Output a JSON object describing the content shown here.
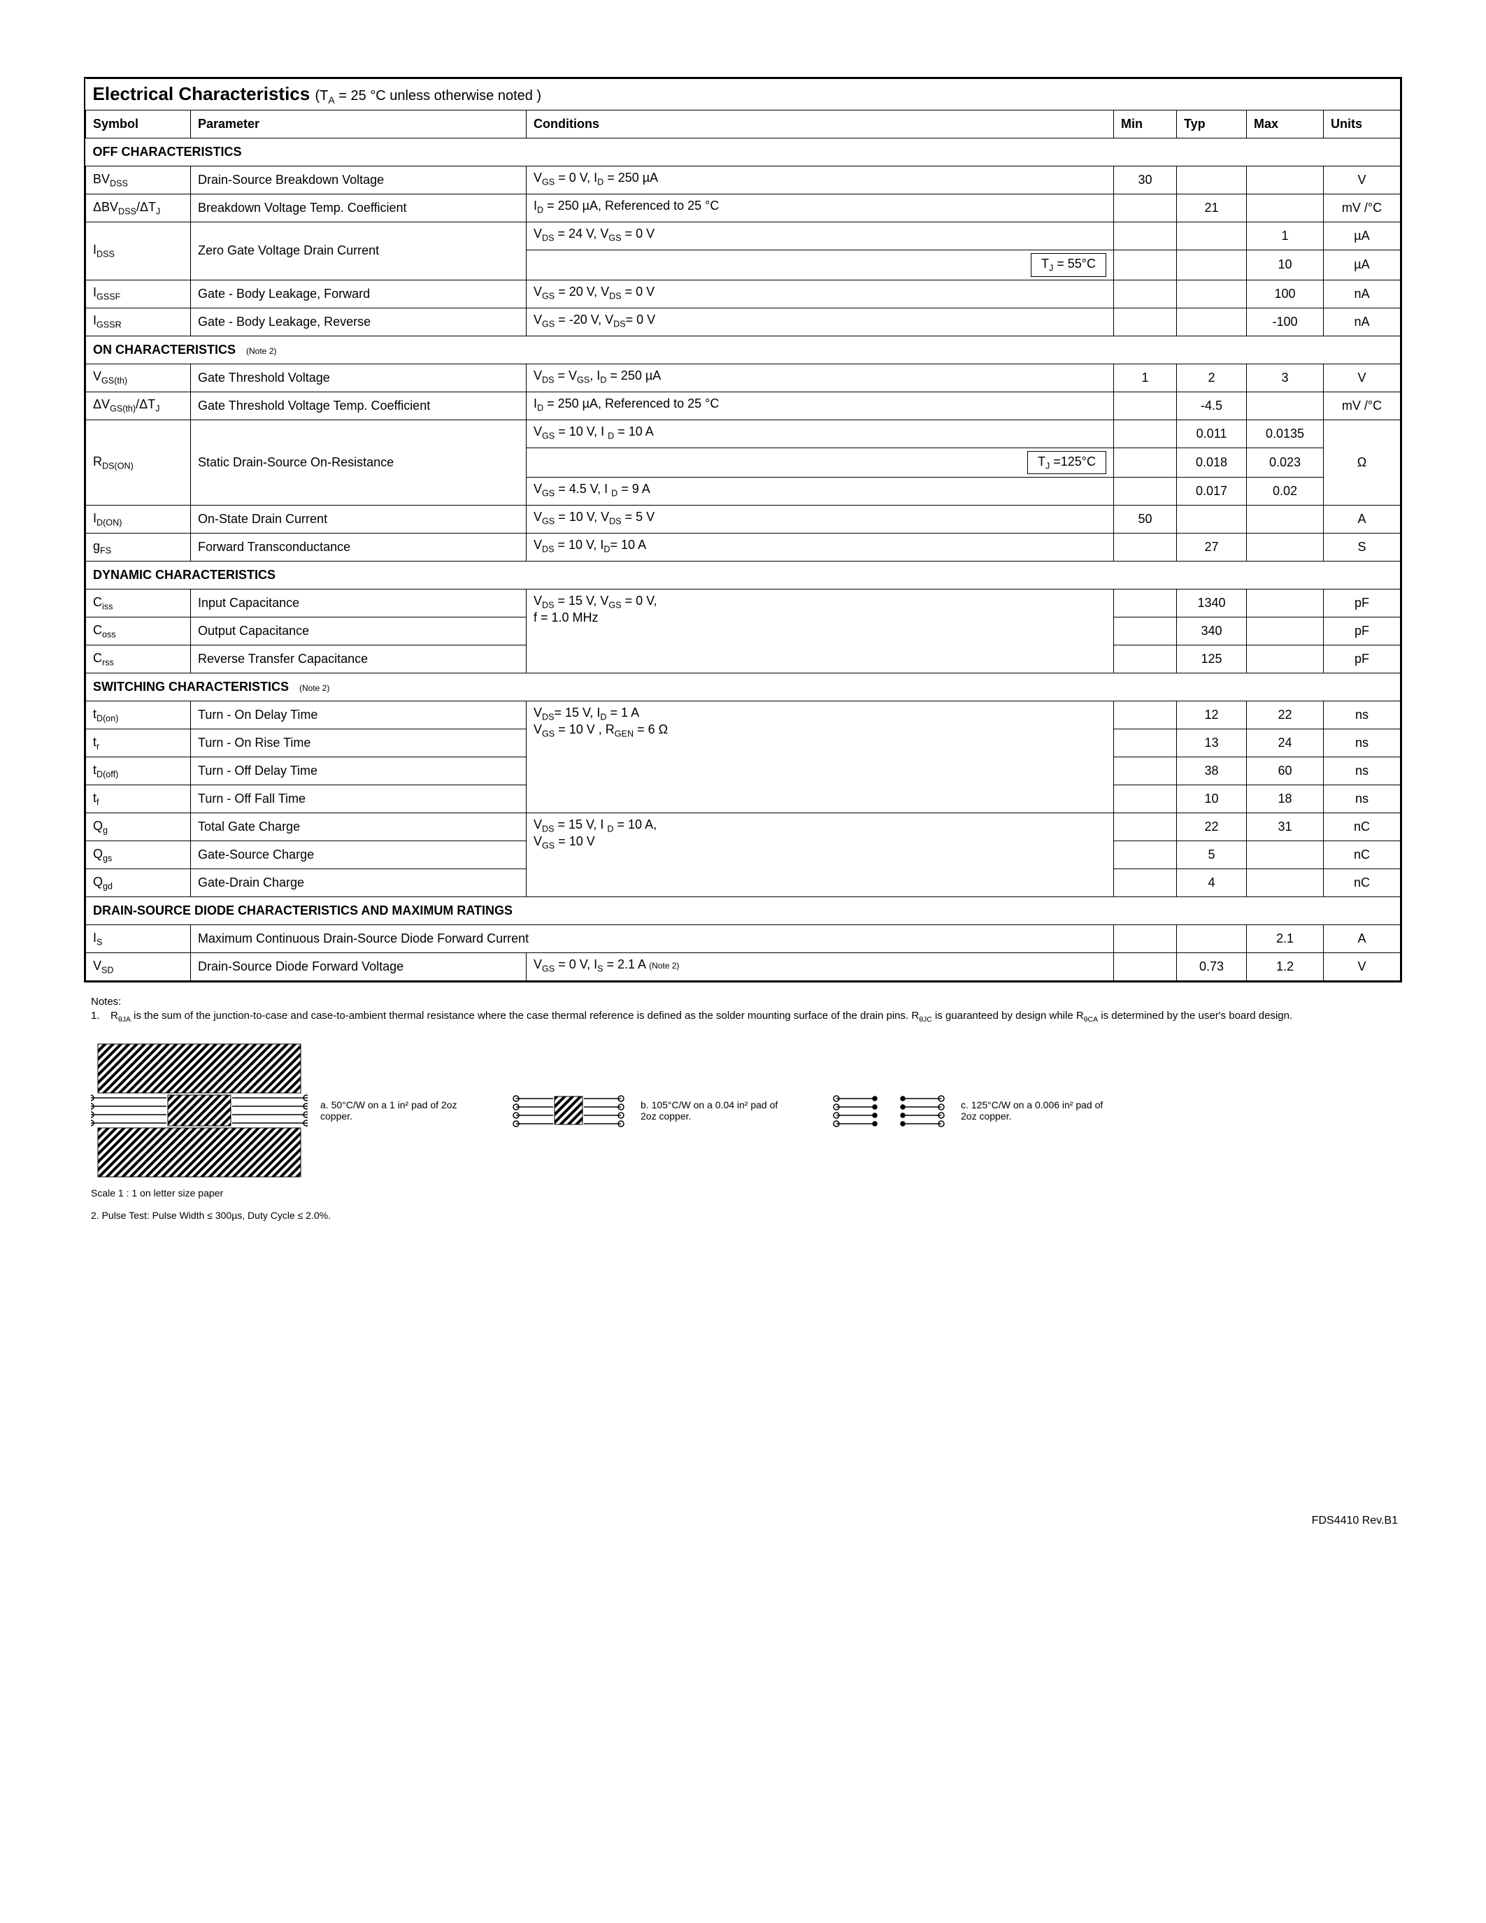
{
  "title": "Electrical Characteristics",
  "title_cond": "(T_A = 25 °C unless otherwise noted )",
  "headers": {
    "symbol": "Symbol",
    "parameter": "Parameter",
    "conditions": "Conditions",
    "min": "Min",
    "typ": "Typ",
    "max": "Max",
    "units": "Units"
  },
  "sections": [
    {
      "name": "OFF CHARACTERISTICS",
      "rows": [
        {
          "sym_html": "BV<sub>DSS</sub>",
          "param": "Drain-Source Breakdown Voltage",
          "cond_html": "V<sub>GS</sub> = 0 V,  I<sub>D</sub> = 250 µA",
          "min": "30",
          "typ": "",
          "max": "",
          "units": "V"
        },
        {
          "sym_html": "ΔBV<sub>DSS</sub>/ΔT<sub>J</sub>",
          "param": "Breakdown Voltage Temp. Coefficient",
          "cond_html": "I<sub>D</sub> = 250 µA, Referenced to  25 °C",
          "min": "",
          "typ": "21",
          "max": "",
          "units": "mV /°C"
        },
        {
          "sym_html": "I<sub>DSS</sub>",
          "sym_rowspan": 2,
          "param": "Zero Gate Voltage  Drain Current",
          "param_rowspan": 2,
          "cond_html": "V<sub>DS</sub> = 24 V,  V<sub>GS</sub> = 0 V",
          "min": "",
          "typ": "",
          "max": "1",
          "units": "µA"
        },
        {
          "cond_box": "T_J = 55°C",
          "min": "",
          "typ": "",
          "max": "10",
          "units": "µA"
        },
        {
          "sym_html": "I<sub>GSSF</sub>",
          "param": "Gate - Body Leakage, Forward",
          "cond_html": "V<sub>GS</sub> =  20 V, V<sub>DS</sub> =  0 V",
          "min": "",
          "typ": "",
          "max": "100",
          "units": "nA"
        },
        {
          "sym_html": "I<sub>GSSR</sub>",
          "param": "Gate - Body Leakage, Reverse",
          "cond_html": "V<sub>GS</sub> =  -20 V, V<sub>DS</sub>=  0 V",
          "min": "",
          "typ": "",
          "max": "-100",
          "units": "nA"
        }
      ]
    },
    {
      "name": "ON CHARACTERISTICS",
      "note": "(Note 2)",
      "rows": [
        {
          "sym_html": "V<sub>GS(th)</sub>",
          "param": "Gate Threshold Voltage",
          "cond_html": "V<sub>DS</sub> = V<sub>GS</sub>,  I<sub>D</sub> = 250 µA",
          "min": "1",
          "typ": "2",
          "max": "3",
          "units": "V"
        },
        {
          "sym_html": "ΔV<sub>GS(th)</sub>/ΔT<sub>J</sub>",
          "param": "Gate Threshold Voltage Temp. Coefficient",
          "cond_html": "I<sub>D</sub> = 250 µA, Referenced to  25 °C",
          "min": "",
          "typ": "-4.5",
          "max": "",
          "units": "mV /°C"
        },
        {
          "sym_html": "R<sub>DS(ON)</sub>",
          "sym_rowspan": 3,
          "param": "Static Drain-Source On-Resistance",
          "param_rowspan": 3,
          "cond_html": "V<sub>GS</sub> = 10 V,  I <sub>D</sub> = 10 A",
          "min": "",
          "typ": "0.011",
          "max": "0.0135",
          "units": "Ω",
          "units_rowspan": 3
        },
        {
          "cond_box": "T_J =125°C",
          "min": "",
          "typ": "0.018",
          "max": "0.023"
        },
        {
          "cond_html": "V<sub>GS</sub> = 4.5 V,  I <sub>D</sub> = 9 A",
          "min": "",
          "typ": "0.017",
          "max": "0.02"
        },
        {
          "sym_html": "I<sub>D(ON)</sub>",
          "param": "On-State Drain Current",
          "cond_html": "V<sub>GS</sub> = 10 V,  V<sub>DS</sub> = 5 V",
          "min": "50",
          "typ": "",
          "max": "",
          "units": "A"
        },
        {
          "sym_html": "g<sub>FS</sub>",
          "param": "Forward Transconductance",
          "cond_html": "V<sub>DS</sub> = 10 V,  I<sub>D</sub>= 10 A",
          "min": "",
          "typ": "27",
          "max": "",
          "units": "S"
        }
      ]
    },
    {
      "name": "DYNAMIC  CHARACTERISTICS",
      "rows": [
        {
          "sym_html": "C<sub>iss</sub>",
          "param": "Input Capacitance",
          "cond_html": "V<sub>DS</sub> = 15 V,  V<sub>GS</sub> = 0 V,<br> f  = 1.0 MHz",
          "cond_rowspan": 3,
          "min": "",
          "typ": "1340",
          "max": "",
          "units": "pF"
        },
        {
          "sym_html": "C<sub>oss</sub>",
          "param": "Output Capacitance",
          "min": "",
          "typ": "340",
          "max": "",
          "units": "pF"
        },
        {
          "sym_html": "C<sub>rss</sub>",
          "param": "Reverse Transfer Capacitance",
          "min": "",
          "typ": "125",
          "max": "",
          "units": "pF"
        }
      ]
    },
    {
      "name": "SWITCHING  CHARACTERISTICS",
      "note": "(Note 2)",
      "rows": [
        {
          "sym_html": "t<sub>D(on)</sub>",
          "param": "Turn - On Delay Time",
          "cond_html": "V<sub>DS</sub>= 15 V,  I<sub>D</sub> = 1 A <br>V<sub>GS</sub> = 10 V ,  R<sub>GEN</sub>  = 6 Ω",
          "cond_rowspan": 4,
          "min": "",
          "typ": "12",
          "max": "22",
          "units": "ns"
        },
        {
          "sym_html": "t<sub>r</sub>",
          "param": "Turn - On Rise Time",
          "min": "",
          "typ": "13",
          "max": "24",
          "units": "ns"
        },
        {
          "sym_html": "t<sub>D(off)</sub>",
          "param": "Turn - Off Delay Time",
          "min": "",
          "typ": "38",
          "max": "60",
          "units": "ns"
        },
        {
          "sym_html": "t<sub>f</sub>",
          "param": "Turn - Off Fall Time",
          "min": "",
          "typ": "10",
          "max": "18",
          "units": "ns"
        },
        {
          "sym_html": "Q<sub>g</sub>",
          "param": "Total Gate Charge",
          "cond_html": "V<sub>DS</sub> = 15 V,  I <sub>D</sub> = 10 A,<br>V<sub>GS</sub> = 10 V",
          "cond_rowspan": 3,
          "min": "",
          "typ": "22",
          "max": "31",
          "units": "nC"
        },
        {
          "sym_html": "Q<sub>gs</sub>",
          "param": "Gate-Source Charge",
          "min": "",
          "typ": "5",
          "max": "",
          "units": "nC"
        },
        {
          "sym_html": "Q<sub>gd</sub>",
          "param": "Gate-Drain Charge",
          "min": "",
          "typ": "4",
          "max": "",
          "units": "nC"
        }
      ]
    },
    {
      "name": "DRAIN-SOURCE DIODE CHARACTERISTICS AND MAXIMUM RATINGS",
      "rows": [
        {
          "sym_html": "I<sub>S</sub>",
          "param": "Maximum Continuous Drain-Source Diode Forward Current",
          "param_colspan": 2,
          "min": "",
          "typ": "",
          "max": "2.1",
          "units": "A"
        },
        {
          "sym_html": "V<sub>SD</sub>",
          "param": "Drain-Source Diode Forward Voltage",
          "cond_html": "V<sub>GS</sub> = 0 V,  I<sub>S</sub> = 2.1 A  <span class='note-ref'>(Note 2)</span>",
          "min": "",
          "typ": "0.73",
          "max": "1.2",
          "units": "V"
        }
      ]
    }
  ],
  "notes_label": "Notes:",
  "notes": [
    "R<sub>θJA</sub> is the sum of the junction-to-case and case-to-ambient thermal resistance where the case thermal reference is defined as  the  solder  mounting surface of the drain pins. R<sub>θJC</sub> is guaranteed by design while R<sub>θCA</sub> is determined by the user's board design."
  ],
  "thermal": [
    {
      "label": "a. 50°C/W on a 1 in² pad of 2oz copper.",
      "pad": "large"
    },
    {
      "label": "b. 105°C/W on a 0.04 in² pad of 2oz copper.",
      "pad": "small"
    },
    {
      "label": "c. 125°C/W on a 0.006 in² pad of 2oz copper.",
      "pad": "none"
    }
  ],
  "scale_text": "Scale 1 : 1 on letter size paper",
  "note2": "2. Pulse Test: Pulse Width ≤ 300µs, Duty Cycle ≤ 2.0%.",
  "footer": "FDS4410 Rev.B1"
}
